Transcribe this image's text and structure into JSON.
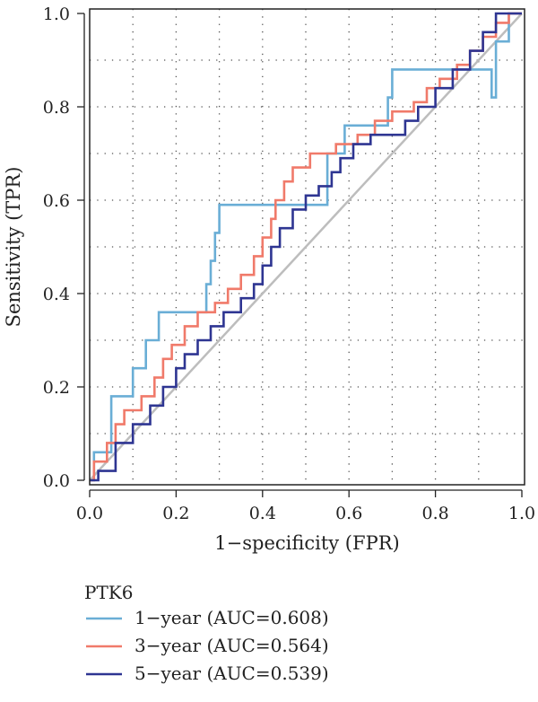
{
  "chart_data": {
    "type": "line",
    "xlabel": "1−specificity (FPR)",
    "ylabel": "Sensitivity (TPR)",
    "xlim": [
      0,
      1
    ],
    "ylim": [
      0,
      1
    ],
    "x_ticks": [
      "0.0",
      "0.2",
      "0.4",
      "0.6",
      "0.8",
      "1.0"
    ],
    "y_ticks": [
      "0.0",
      "0.2",
      "0.4",
      "0.6",
      "0.8",
      "1.0"
    ],
    "grid": "dotted",
    "diagonal_reference": {
      "from": [
        0,
        0
      ],
      "to": [
        1,
        1
      ],
      "color": "#bdbdbd"
    },
    "legend": {
      "title": "PTK6",
      "placement": "bottom-left"
    },
    "series": [
      {
        "name": "1−year (AUC=0.608)",
        "color": "#6aaed6",
        "points": [
          [
            0,
            0
          ],
          [
            0.01,
            0
          ],
          [
            0.01,
            0.06
          ],
          [
            0.05,
            0.06
          ],
          [
            0.05,
            0.18
          ],
          [
            0.1,
            0.18
          ],
          [
            0.1,
            0.24
          ],
          [
            0.13,
            0.24
          ],
          [
            0.13,
            0.3
          ],
          [
            0.16,
            0.3
          ],
          [
            0.16,
            0.36
          ],
          [
            0.27,
            0.36
          ],
          [
            0.27,
            0.42
          ],
          [
            0.28,
            0.42
          ],
          [
            0.28,
            0.47
          ],
          [
            0.29,
            0.47
          ],
          [
            0.29,
            0.53
          ],
          [
            0.3,
            0.53
          ],
          [
            0.3,
            0.59
          ],
          [
            0.55,
            0.59
          ],
          [
            0.55,
            0.7
          ],
          [
            0.59,
            0.7
          ],
          [
            0.59,
            0.76
          ],
          [
            0.69,
            0.76
          ],
          [
            0.69,
            0.82
          ],
          [
            0.7,
            0.82
          ],
          [
            0.7,
            0.88
          ],
          [
            0.93,
            0.88
          ],
          [
            0.93,
            0.82
          ],
          [
            0.94,
            0.82
          ],
          [
            0.94,
            0.94
          ],
          [
            0.97,
            0.94
          ],
          [
            0.97,
            1
          ],
          [
            1,
            1
          ]
        ]
      },
      {
        "name": "3−year (AUC=0.564)",
        "color": "#f07a6a",
        "points": [
          [
            0,
            0
          ],
          [
            0.01,
            0
          ],
          [
            0.01,
            0.04
          ],
          [
            0.04,
            0.04
          ],
          [
            0.04,
            0.08
          ],
          [
            0.06,
            0.08
          ],
          [
            0.06,
            0.12
          ],
          [
            0.08,
            0.12
          ],
          [
            0.08,
            0.15
          ],
          [
            0.12,
            0.15
          ],
          [
            0.12,
            0.18
          ],
          [
            0.15,
            0.18
          ],
          [
            0.15,
            0.22
          ],
          [
            0.17,
            0.22
          ],
          [
            0.17,
            0.26
          ],
          [
            0.19,
            0.26
          ],
          [
            0.19,
            0.29
          ],
          [
            0.22,
            0.29
          ],
          [
            0.22,
            0.33
          ],
          [
            0.25,
            0.33
          ],
          [
            0.25,
            0.36
          ],
          [
            0.29,
            0.36
          ],
          [
            0.29,
            0.38
          ],
          [
            0.32,
            0.38
          ],
          [
            0.32,
            0.41
          ],
          [
            0.35,
            0.41
          ],
          [
            0.35,
            0.44
          ],
          [
            0.38,
            0.44
          ],
          [
            0.38,
            0.48
          ],
          [
            0.4,
            0.48
          ],
          [
            0.4,
            0.52
          ],
          [
            0.42,
            0.52
          ],
          [
            0.42,
            0.56
          ],
          [
            0.43,
            0.56
          ],
          [
            0.43,
            0.6
          ],
          [
            0.45,
            0.6
          ],
          [
            0.45,
            0.64
          ],
          [
            0.47,
            0.64
          ],
          [
            0.47,
            0.67
          ],
          [
            0.51,
            0.67
          ],
          [
            0.51,
            0.7
          ],
          [
            0.57,
            0.7
          ],
          [
            0.57,
            0.72
          ],
          [
            0.62,
            0.72
          ],
          [
            0.62,
            0.74
          ],
          [
            0.66,
            0.74
          ],
          [
            0.66,
            0.77
          ],
          [
            0.7,
            0.77
          ],
          [
            0.7,
            0.79
          ],
          [
            0.75,
            0.79
          ],
          [
            0.75,
            0.81
          ],
          [
            0.78,
            0.81
          ],
          [
            0.78,
            0.84
          ],
          [
            0.81,
            0.84
          ],
          [
            0.81,
            0.86
          ],
          [
            0.85,
            0.86
          ],
          [
            0.85,
            0.89
          ],
          [
            0.88,
            0.89
          ],
          [
            0.88,
            0.92
          ],
          [
            0.91,
            0.92
          ],
          [
            0.91,
            0.95
          ],
          [
            0.94,
            0.95
          ],
          [
            0.94,
            0.98
          ],
          [
            0.97,
            0.98
          ],
          [
            0.97,
            1
          ],
          [
            1,
            1
          ]
        ]
      },
      {
        "name": "5−year (AUC=0.539)",
        "color": "#2e3592",
        "points": [
          [
            0,
            0
          ],
          [
            0.02,
            0
          ],
          [
            0.02,
            0.02
          ],
          [
            0.06,
            0.02
          ],
          [
            0.06,
            0.08
          ],
          [
            0.1,
            0.08
          ],
          [
            0.1,
            0.12
          ],
          [
            0.14,
            0.12
          ],
          [
            0.14,
            0.16
          ],
          [
            0.17,
            0.16
          ],
          [
            0.17,
            0.2
          ],
          [
            0.2,
            0.2
          ],
          [
            0.2,
            0.24
          ],
          [
            0.22,
            0.24
          ],
          [
            0.22,
            0.27
          ],
          [
            0.25,
            0.27
          ],
          [
            0.25,
            0.3
          ],
          [
            0.28,
            0.3
          ],
          [
            0.28,
            0.33
          ],
          [
            0.31,
            0.33
          ],
          [
            0.31,
            0.36
          ],
          [
            0.35,
            0.36
          ],
          [
            0.35,
            0.39
          ],
          [
            0.38,
            0.39
          ],
          [
            0.38,
            0.42
          ],
          [
            0.4,
            0.42
          ],
          [
            0.4,
            0.46
          ],
          [
            0.42,
            0.46
          ],
          [
            0.42,
            0.5
          ],
          [
            0.44,
            0.5
          ],
          [
            0.44,
            0.54
          ],
          [
            0.47,
            0.54
          ],
          [
            0.47,
            0.58
          ],
          [
            0.5,
            0.58
          ],
          [
            0.5,
            0.61
          ],
          [
            0.53,
            0.61
          ],
          [
            0.53,
            0.63
          ],
          [
            0.56,
            0.63
          ],
          [
            0.56,
            0.66
          ],
          [
            0.58,
            0.66
          ],
          [
            0.58,
            0.69
          ],
          [
            0.61,
            0.69
          ],
          [
            0.61,
            0.72
          ],
          [
            0.65,
            0.72
          ],
          [
            0.65,
            0.74
          ],
          [
            0.73,
            0.74
          ],
          [
            0.73,
            0.77
          ],
          [
            0.76,
            0.77
          ],
          [
            0.76,
            0.8
          ],
          [
            0.8,
            0.8
          ],
          [
            0.8,
            0.84
          ],
          [
            0.84,
            0.84
          ],
          [
            0.84,
            0.88
          ],
          [
            0.88,
            0.88
          ],
          [
            0.88,
            0.92
          ],
          [
            0.91,
            0.92
          ],
          [
            0.91,
            0.96
          ],
          [
            0.94,
            0.96
          ],
          [
            0.94,
            1
          ],
          [
            1,
            1
          ]
        ]
      }
    ]
  }
}
